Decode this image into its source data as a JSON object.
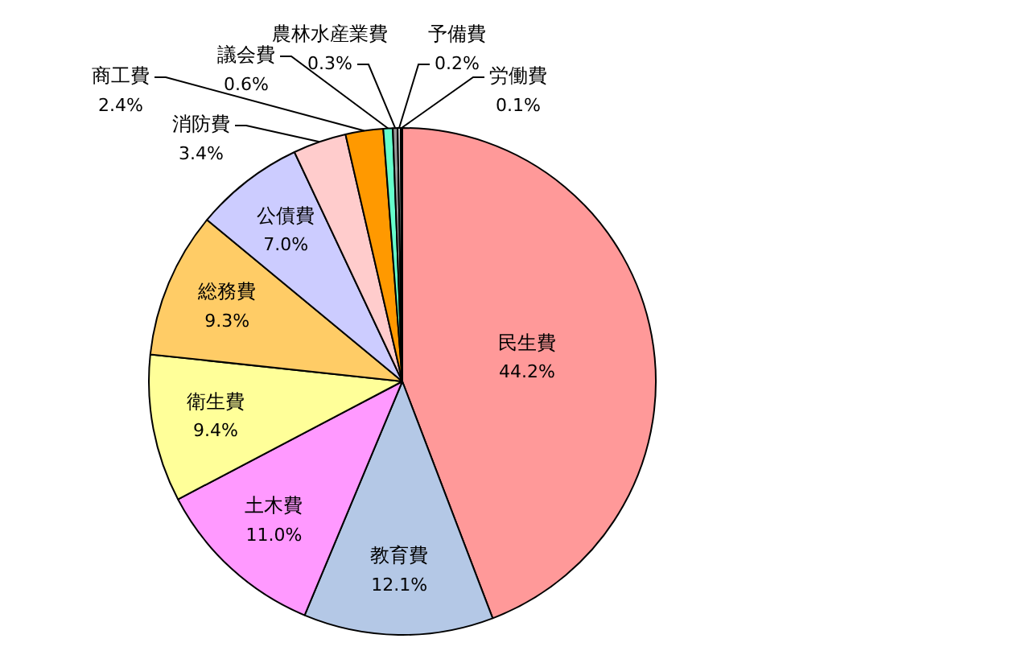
{
  "chart_data": {
    "type": "pie",
    "categories": [
      "民生費",
      "教育費",
      "土木費",
      "衛生費",
      "総務費",
      "公債費",
      "消防費",
      "商工費",
      "議会費",
      "農林水産業費",
      "予備費",
      "労働費"
    ],
    "values": [
      44.2,
      12.1,
      11.0,
      9.4,
      9.3,
      7.0,
      3.4,
      2.4,
      0.6,
      0.3,
      0.2,
      0.1
    ],
    "colors": [
      "#ff9999",
      "#b4c8e6",
      "#ff99ff",
      "#ffff99",
      "#ffcc66",
      "#ccccff",
      "#ffcccc",
      "#ff9900",
      "#66ffcc",
      "#999999",
      "#cccccc",
      "#333333"
    ],
    "value_labels": [
      "44.2%",
      "12.1%",
      "11.0%",
      "9.4%",
      "9.3%",
      "7.0%",
      "3.4%",
      "2.4%",
      "0.6%",
      "0.3%",
      "0.2%",
      "0.1%"
    ]
  }
}
